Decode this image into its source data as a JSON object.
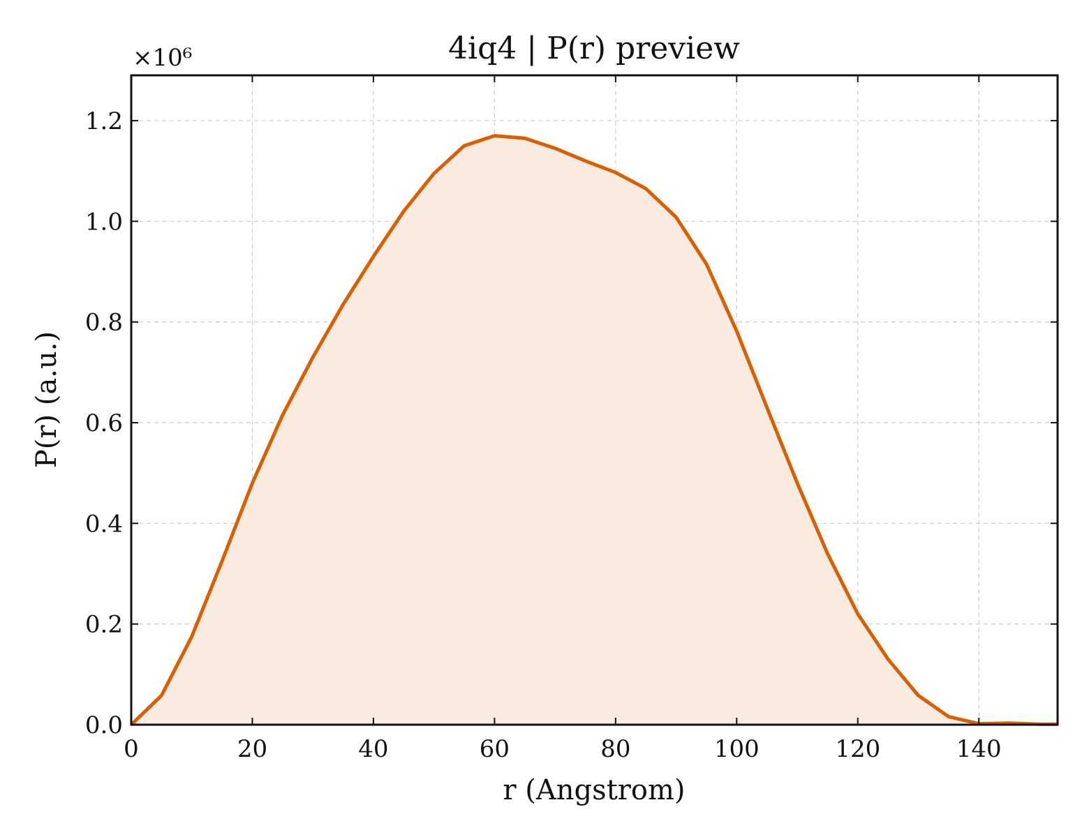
{
  "chart_data": {
    "type": "area",
    "title": "4iq4 | P(r) preview",
    "xlabel": "r (Angstrom)",
    "ylabel": "P(r) (a.u.)",
    "y_multiplier_label": "×10⁶",
    "xlim": [
      0,
      153
    ],
    "ylim": [
      0,
      1.29
    ],
    "x_ticks": [
      0,
      20,
      40,
      60,
      80,
      100,
      120,
      140
    ],
    "y_ticks": [
      0.0,
      0.2,
      0.4,
      0.6,
      0.8,
      1.0,
      1.2
    ],
    "x_tick_labels": [
      "0",
      "20",
      "40",
      "60",
      "80",
      "100",
      "120",
      "140"
    ],
    "y_tick_labels": [
      "0.0",
      "0.2",
      "0.4",
      "0.6",
      "0.8",
      "1.0",
      "1.2"
    ],
    "grid": true,
    "colors": {
      "line": "#d95f02",
      "fill": "#f9ebe0"
    },
    "series": [
      {
        "x": [
          0,
          5,
          10,
          15,
          20,
          25,
          30,
          35,
          40,
          45,
          50,
          55,
          60,
          65,
          70,
          75,
          80,
          85,
          90,
          95,
          100,
          105,
          110,
          115,
          120,
          125,
          130,
          135,
          140,
          145,
          150,
          153
        ],
        "y": [
          0.0,
          0.058,
          0.175,
          0.325,
          0.48,
          0.615,
          0.73,
          0.835,
          0.93,
          1.02,
          1.095,
          1.15,
          1.17,
          1.165,
          1.145,
          1.12,
          1.097,
          1.065,
          1.008,
          0.915,
          0.782,
          0.63,
          0.48,
          0.34,
          0.22,
          0.13,
          0.058,
          0.016,
          0.002,
          0.003,
          0.001,
          0.001
        ]
      }
    ]
  }
}
